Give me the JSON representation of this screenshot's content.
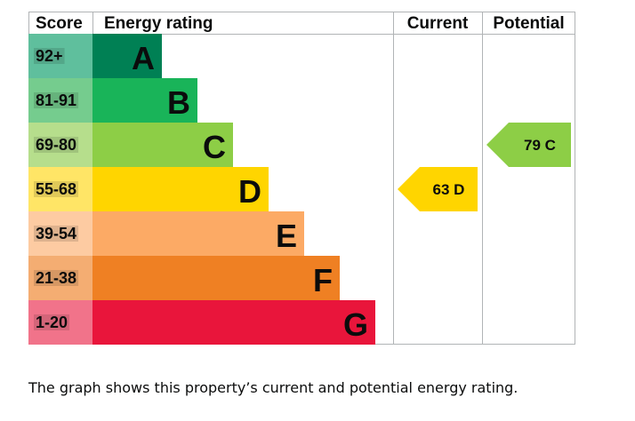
{
  "chart_data": {
    "type": "bar",
    "headers": {
      "score": "Score",
      "rating": "Energy rating",
      "current": "Current",
      "potential": "Potential"
    },
    "bands": [
      {
        "letter": "A",
        "score": "92+",
        "color": "#008054",
        "score_bg": "#5fbf9d"
      },
      {
        "letter": "B",
        "score": "81-91",
        "color": "#19b459",
        "score_bg": "#75cc8e"
      },
      {
        "letter": "C",
        "score": "69-80",
        "color": "#8dce46",
        "score_bg": "#b6de8c"
      },
      {
        "letter": "D",
        "score": "55-68",
        "color": "#ffd500",
        "score_bg": "#ffe566"
      },
      {
        "letter": "E",
        "score": "39-54",
        "color": "#fcaa65",
        "score_bg": "#fdcba2"
      },
      {
        "letter": "F",
        "score": "21-38",
        "color": "#ef8023",
        "score_bg": "#f4ad72"
      },
      {
        "letter": "G",
        "score": "1-20",
        "color": "#e9153b",
        "score_bg": "#f1738a"
      }
    ],
    "current": {
      "value": 63,
      "band": "D",
      "color": "#ffd500"
    },
    "potential": {
      "value": 79,
      "band": "C",
      "color": "#8dce46"
    }
  },
  "caption": "The graph shows this property’s current and potential energy rating."
}
